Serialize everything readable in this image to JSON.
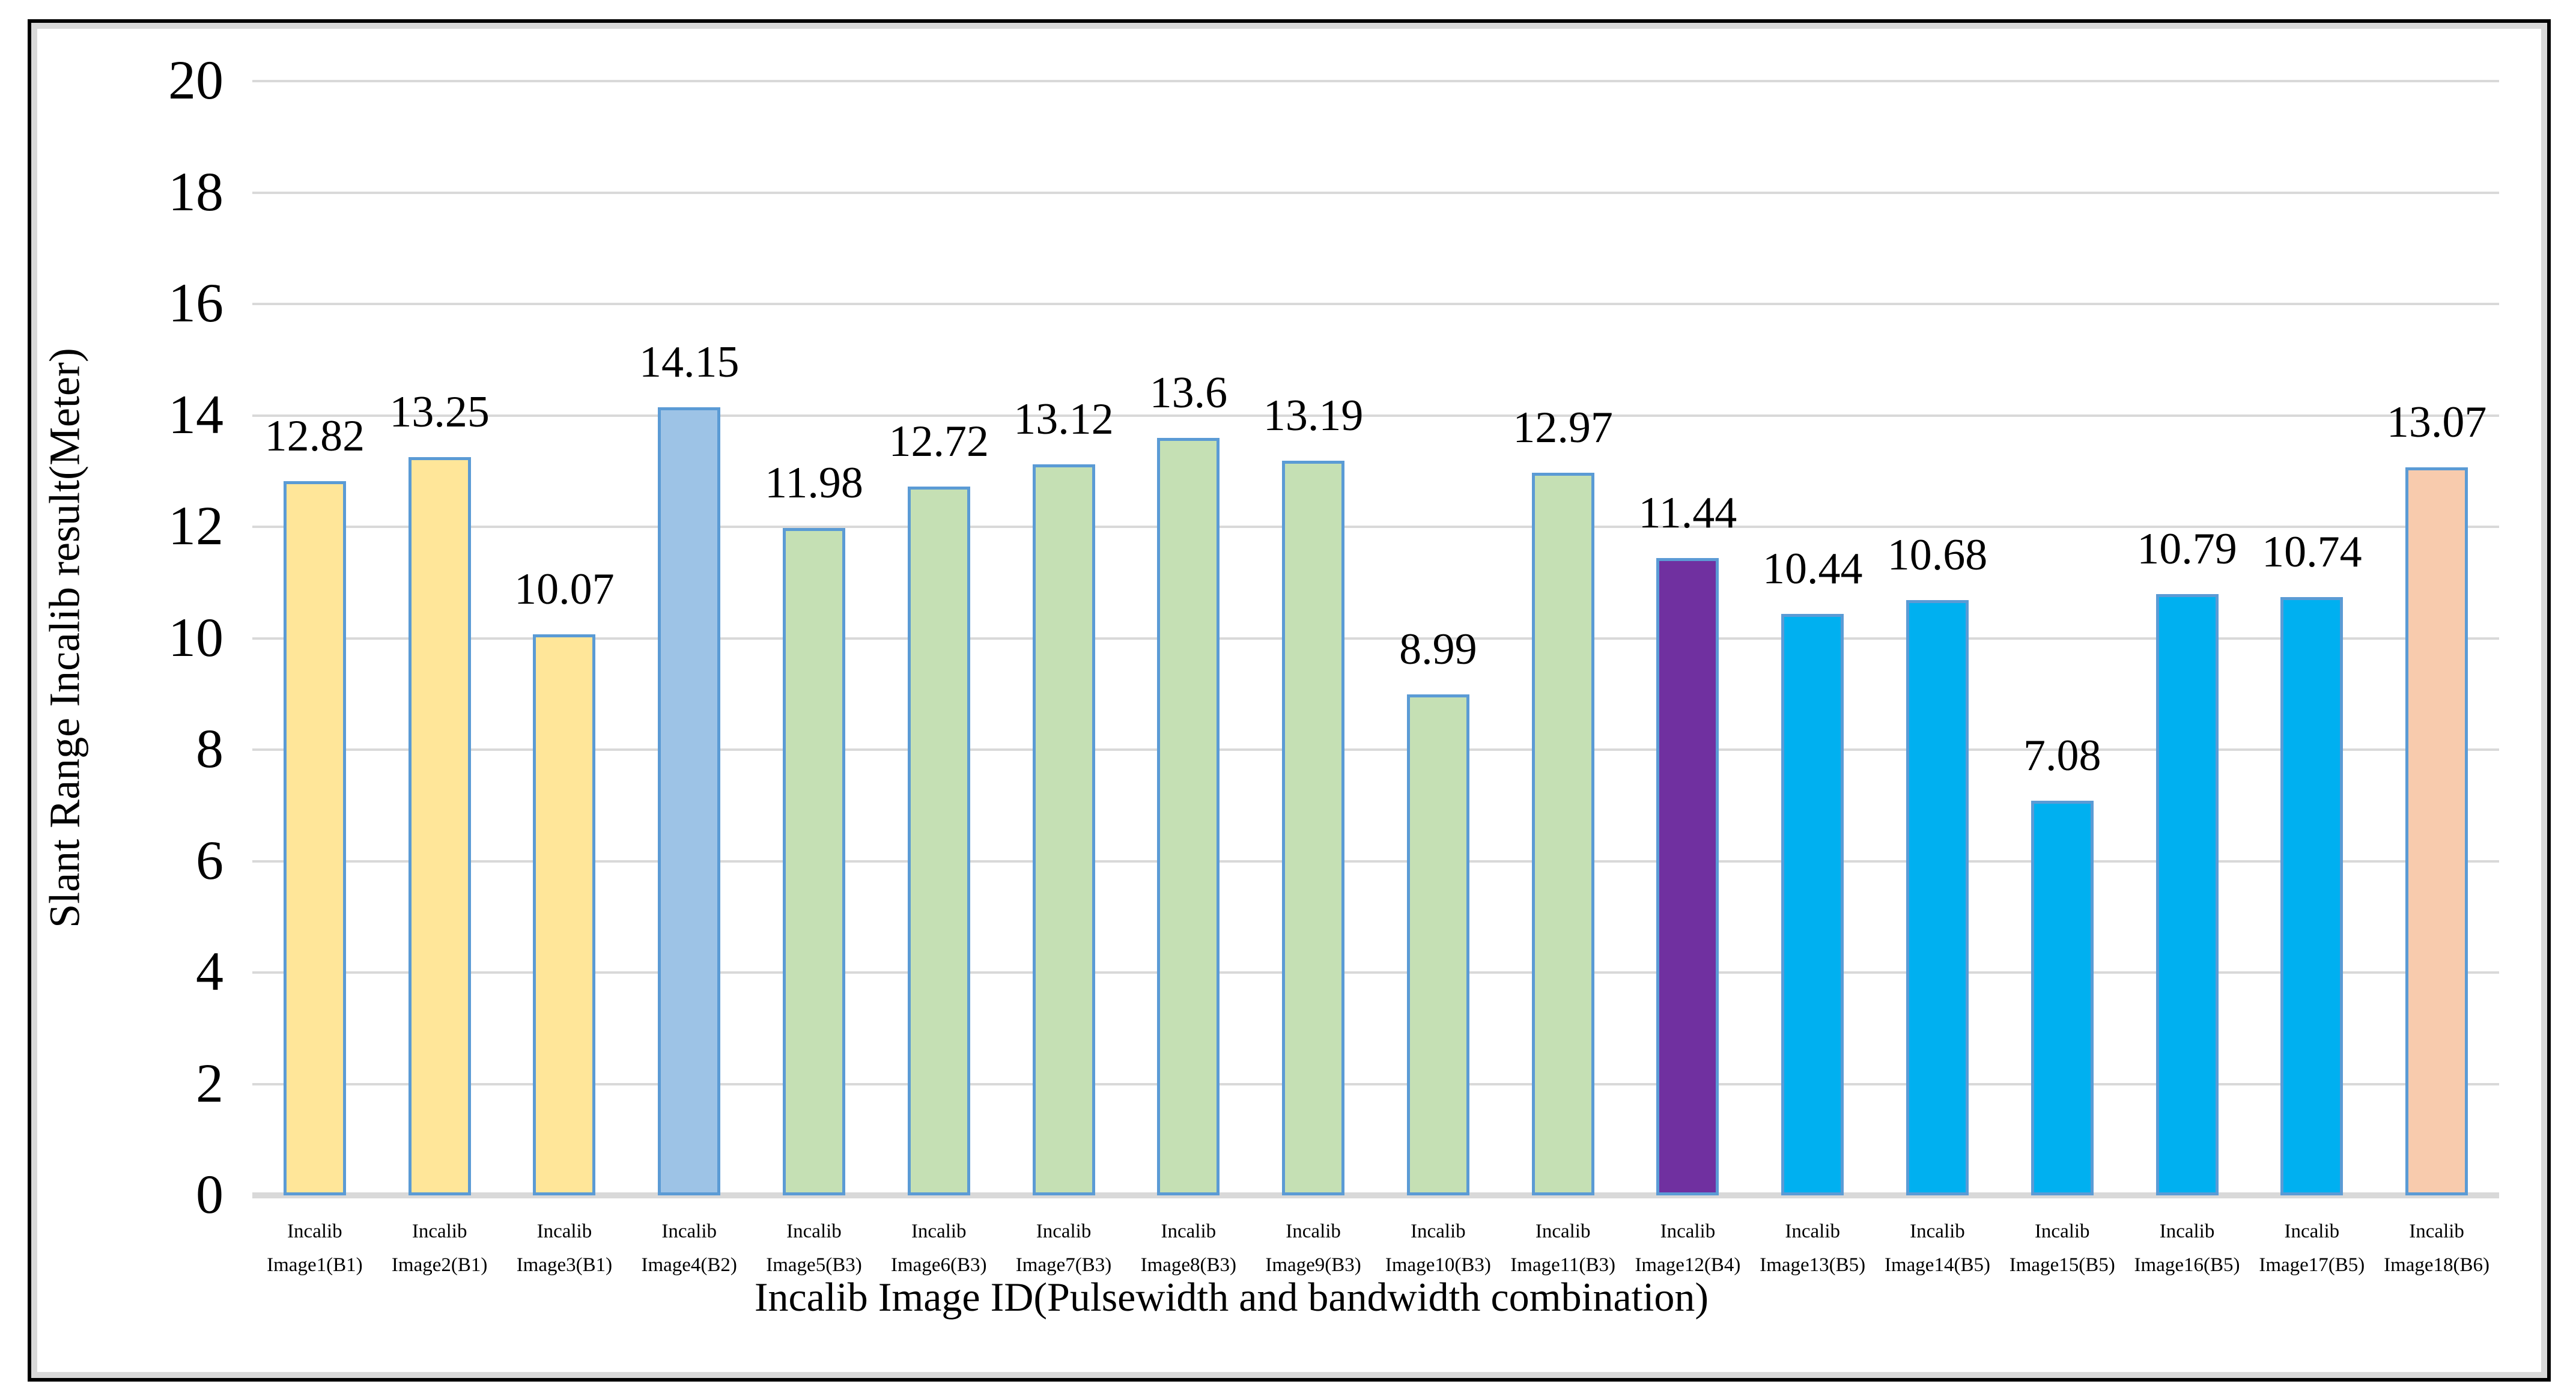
{
  "chart_data": {
    "type": "bar",
    "title": "",
    "xlabel": "Incalib Image ID(Pulsewidth and bandwidth combination)",
    "ylabel": "Slant Range Incalib result(Meter)",
    "ylim": [
      0,
      20
    ],
    "yticks": [
      20,
      18,
      16,
      14,
      12,
      10,
      8,
      6,
      4,
      2,
      0
    ],
    "grid": true,
    "legend": "none",
    "value_labels_shown": true,
    "tick_label_line1": "Incalib",
    "categories": [
      "Image1(B1)",
      "Image2(B1)",
      "Image3(B1)",
      "Image4(B2)",
      "Image5(B3)",
      "Image6(B3)",
      "Image7(B3)",
      "Image8(B3)",
      "Image9(B3)",
      "Image10(B3)",
      "Image11(B3)",
      "Image12(B4)",
      "Image13(B5)",
      "Image14(B5)",
      "Image15(B5)",
      "Image16(B5)",
      "Image17(B5)",
      "Image18(B6)"
    ],
    "values": [
      12.82,
      13.25,
      10.07,
      14.15,
      11.98,
      12.72,
      13.12,
      13.6,
      13.19,
      8.99,
      12.97,
      11.44,
      10.44,
      10.68,
      7.08,
      10.79,
      10.74,
      13.07
    ],
    "bar_groups": [
      "B1",
      "B1",
      "B1",
      "B2",
      "B3",
      "B3",
      "B3",
      "B3",
      "B3",
      "B3",
      "B3",
      "B4",
      "B5",
      "B5",
      "B5",
      "B5",
      "B5",
      "B6"
    ],
    "bar_colors": {
      "B1": "#ffe699",
      "B2": "#9dc3e6",
      "B3": "#c5e0b4",
      "B4": "#7030a0",
      "B5": "#00b0f0",
      "B6": "#f8cbad"
    },
    "bar_border_color": "#5b9bd5",
    "gridline_color": "#d9d9d9",
    "axis_line_color": "#d9d9d9",
    "frame_border_color": "#000000",
    "frame_inner_border_color": "#d9d9d9"
  }
}
